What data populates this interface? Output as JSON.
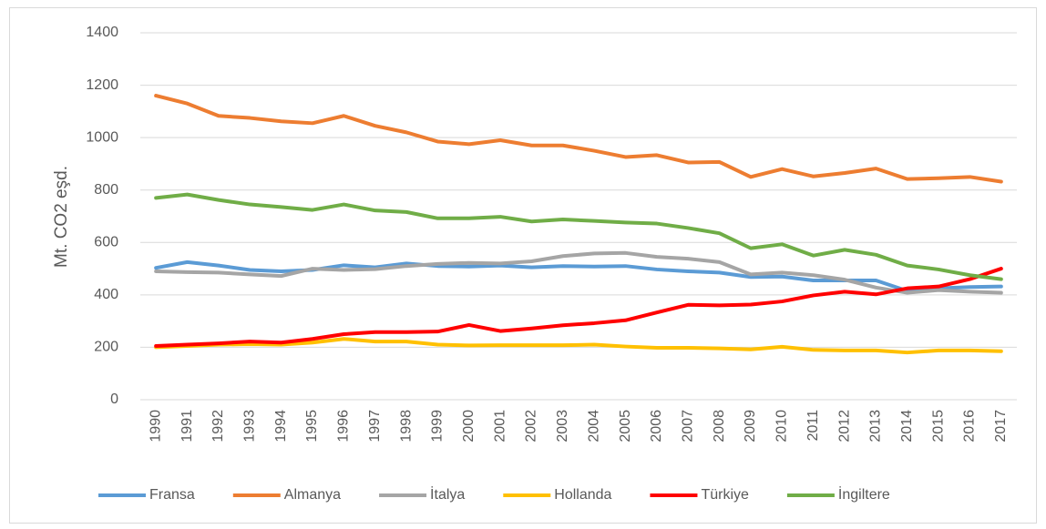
{
  "chart_data": {
    "type": "line",
    "y_label": "Mt. CO2  eşd.",
    "categories": [
      "1990",
      "1991",
      "1992",
      "1993",
      "1994",
      "1995",
      "1996",
      "1997",
      "1998",
      "1999",
      "2000",
      "2001",
      "2002",
      "2003",
      "2004",
      "2005",
      "2006",
      "2007",
      "2008",
      "2009",
      "2010",
      "2011",
      "2012",
      "2013",
      "2014",
      "2015",
      "2016",
      "2017"
    ],
    "series": [
      {
        "name": "Fransa",
        "color": "#5b9bd5",
        "values": [
          503,
          525,
          512,
          495,
          490,
          495,
          513,
          505,
          520,
          510,
          508,
          512,
          505,
          510,
          508,
          510,
          497,
          490,
          485,
          468,
          470,
          455,
          455,
          455,
          415,
          425,
          430,
          432
        ]
      },
      {
        "name": "Almanya",
        "color": "#ed7d31",
        "values": [
          1160,
          1130,
          1083,
          1075,
          1062,
          1055,
          1083,
          1045,
          1020,
          985,
          975,
          990,
          970,
          970,
          950,
          926,
          933,
          905,
          907,
          850,
          880,
          852,
          865,
          882,
          842,
          845,
          850,
          832
        ]
      },
      {
        "name": "İtalya",
        "color": "#a5a5a5",
        "values": [
          490,
          487,
          485,
          478,
          472,
          500,
          495,
          498,
          510,
          518,
          522,
          520,
          528,
          548,
          558,
          560,
          545,
          538,
          525,
          478,
          485,
          475,
          458,
          428,
          408,
          418,
          412,
          408
        ]
      },
      {
        "name": "Hollanda",
        "color": "#ffc000",
        "values": [
          200,
          205,
          210,
          212,
          210,
          218,
          232,
          222,
          222,
          210,
          207,
          208,
          208,
          208,
          210,
          203,
          198,
          198,
          196,
          192,
          202,
          190,
          188,
          188,
          180,
          188,
          188,
          185
        ]
      },
      {
        "name": "Türkiye",
        "color": "#ff0000",
        "values": [
          205,
          210,
          215,
          222,
          218,
          232,
          250,
          258,
          258,
          260,
          285,
          262,
          272,
          284,
          292,
          303,
          333,
          362,
          360,
          363,
          375,
          398,
          412,
          402,
          425,
          432,
          460,
          500
        ]
      },
      {
        "name": "İngiltere",
        "color": "#70ad47",
        "values": [
          770,
          783,
          762,
          745,
          735,
          724,
          745,
          722,
          716,
          692,
          692,
          698,
          680,
          688,
          682,
          676,
          672,
          655,
          635,
          578,
          593,
          550,
          572,
          553,
          512,
          497,
          475,
          460
        ]
      }
    ],
    "ylim": [
      0,
      1400
    ],
    "yticks": [
      0,
      200,
      400,
      600,
      800,
      1000,
      1200,
      1400
    ],
    "grid": true,
    "legend": "bottom"
  }
}
